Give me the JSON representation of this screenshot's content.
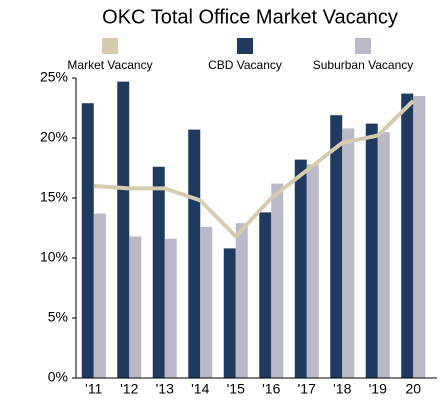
{
  "chart_data": {
    "type": "bar",
    "title": "OKC Total Office Market Vacancy",
    "categories": [
      "'11",
      "'12",
      "'13",
      "'14",
      "'15",
      "'16",
      "'17",
      "'18",
      "'19",
      "20"
    ],
    "series": [
      {
        "name": "Market Vacancy",
        "type": "line",
        "color": "#d6cbae",
        "values": [
          16.0,
          15.8,
          15.8,
          14.8,
          11.8,
          15.0,
          17.3,
          19.6,
          20.2,
          23.1
        ]
      },
      {
        "name": "CBD Vacancy",
        "type": "bar",
        "color": "#1f3a5f",
        "values": [
          22.9,
          24.7,
          17.6,
          20.7,
          10.8,
          13.8,
          18.2,
          21.9,
          21.2,
          23.7
        ]
      },
      {
        "name": "Suburban Vacancy",
        "type": "bar",
        "color": "#b9b9c9",
        "values": [
          13.7,
          11.8,
          11.6,
          12.6,
          12.9,
          16.2,
          17.8,
          20.8,
          20.5,
          23.5
        ]
      }
    ],
    "ylim": [
      0,
      25
    ],
    "yticks": [
      {
        "value": 0,
        "label": "0%"
      },
      {
        "value": 5,
        "label": "5%"
      },
      {
        "value": 10,
        "label": "10%"
      },
      {
        "value": 15,
        "label": "15%"
      },
      {
        "value": 20,
        "label": "20%"
      },
      {
        "value": 25,
        "label": "25%"
      }
    ]
  }
}
